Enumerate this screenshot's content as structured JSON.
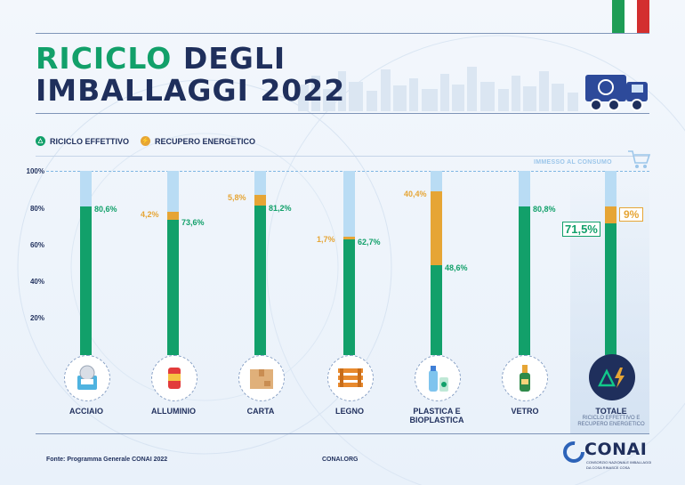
{
  "title": {
    "line1_green": "RICICLO",
    "line1_rest": "DEGLI",
    "line2": "IMBALLAGGI 2022"
  },
  "colors": {
    "green": "#12a06a",
    "orange": "#e6a535",
    "light_blue": "#b9dcf4",
    "navy": "#1f2f5c"
  },
  "legend": {
    "recycling": "RICICLO EFFETTIVO",
    "energy": "RECUPERO ENERGETICO"
  },
  "immesso_label": "IMMESSO AL CONSUMO",
  "chart_data": {
    "type": "bar",
    "stacked": true,
    "ylim": [
      0,
      100
    ],
    "yticks": [
      "100%",
      "80%",
      "60%",
      "40%",
      "20%"
    ],
    "categories": [
      "ACCIAIO",
      "ALLUMINIO",
      "CARTA",
      "LEGNO",
      "PLASTICA E BIOPLASTICA",
      "VETRO",
      "TOTALE"
    ],
    "series": [
      {
        "name": "RICICLO EFFETTIVO",
        "values": [
          80.6,
          73.6,
          81.2,
          62.7,
          48.6,
          80.8,
          71.5
        ],
        "labels": [
          "80,6%",
          "73,6%",
          "81,2%",
          "62,7%",
          "48,6%",
          "80,8%",
          "71,5%"
        ]
      },
      {
        "name": "RECUPERO ENERGETICO",
        "values": [
          0,
          4.2,
          5.8,
          1.7,
          40.4,
          0,
          9
        ],
        "labels": [
          "",
          "4,2%",
          "5,8%",
          "1,7%",
          "40,4%",
          "",
          "9%"
        ]
      }
    ]
  },
  "categories_display": [
    {
      "line1": "ACCIAIO",
      "line2": ""
    },
    {
      "line1": "ALLUMINIO",
      "line2": ""
    },
    {
      "line1": "CARTA",
      "line2": ""
    },
    {
      "line1": "LEGNO",
      "line2": ""
    },
    {
      "line1": "PLASTICA E",
      "line2": "BIOPLASTICA"
    },
    {
      "line1": "VETRO",
      "line2": ""
    },
    {
      "line1": "TOTALE",
      "line2": ""
    }
  ],
  "total_sub": {
    "line1": "RICICLO EFFETTIVO E",
    "line2": "RECUPERO ENERGETICO"
  },
  "icons": [
    "can-icon",
    "aluminium-can-icon",
    "cardboard-box-icon",
    "wooden-pallet-icon",
    "plastic-bottle-icon",
    "glass-bottle-icon",
    "recycle-energy-icon"
  ],
  "footer": {
    "source": "Fonte: Programma Generale CONAI 2022",
    "site": "CONAI.ORG"
  },
  "logo": {
    "name": "CONAI",
    "sub1": "CONSORZIO NAZIONALE IMBALLAGGI",
    "sub2": "DA COSA RINASCE COSA"
  }
}
